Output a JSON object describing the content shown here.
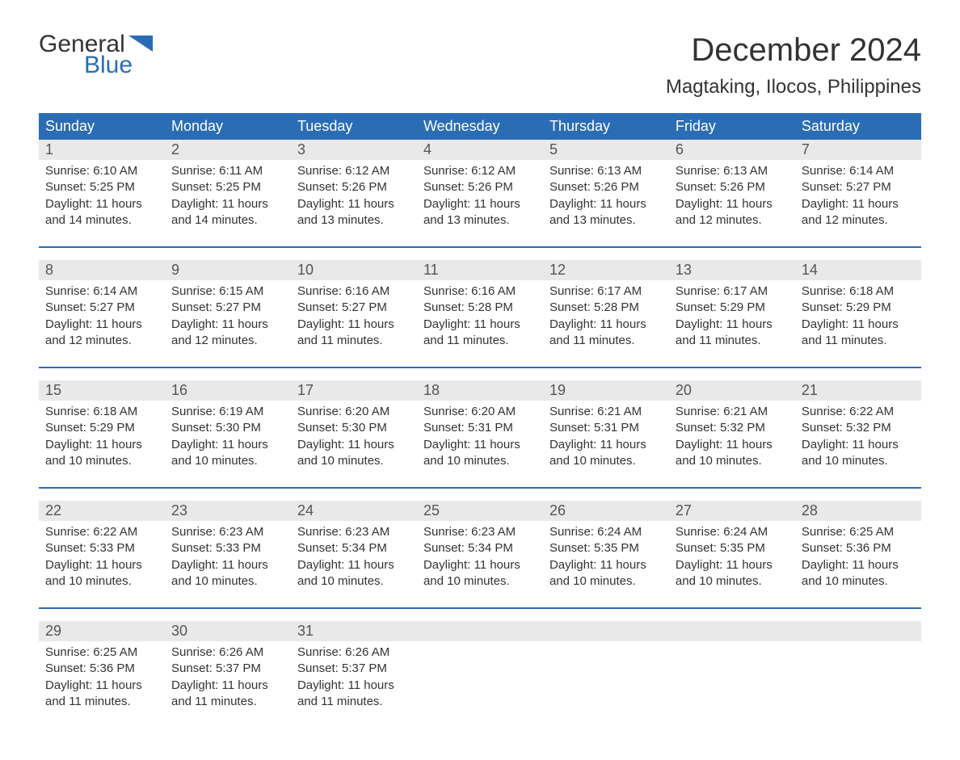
{
  "logo": {
    "word1": "General",
    "word2": "Blue"
  },
  "title": "December 2024",
  "location": "Magtaking, Ilocos, Philippines",
  "colors": {
    "header_bg": "#2a6db5",
    "header_text": "#ffffff",
    "daynum_bg": "#e9e9e9",
    "text": "#333333",
    "logo_accent": "#2a6db5"
  },
  "days_of_week": [
    "Sunday",
    "Monday",
    "Tuesday",
    "Wednesday",
    "Thursday",
    "Friday",
    "Saturday"
  ],
  "weeks": [
    [
      {
        "n": "1",
        "sunrise": "Sunrise: 6:10 AM",
        "sunset": "Sunset: 5:25 PM",
        "day1": "Daylight: 11 hours",
        "day2": "and 14 minutes."
      },
      {
        "n": "2",
        "sunrise": "Sunrise: 6:11 AM",
        "sunset": "Sunset: 5:25 PM",
        "day1": "Daylight: 11 hours",
        "day2": "and 14 minutes."
      },
      {
        "n": "3",
        "sunrise": "Sunrise: 6:12 AM",
        "sunset": "Sunset: 5:26 PM",
        "day1": "Daylight: 11 hours",
        "day2": "and 13 minutes."
      },
      {
        "n": "4",
        "sunrise": "Sunrise: 6:12 AM",
        "sunset": "Sunset: 5:26 PM",
        "day1": "Daylight: 11 hours",
        "day2": "and 13 minutes."
      },
      {
        "n": "5",
        "sunrise": "Sunrise: 6:13 AM",
        "sunset": "Sunset: 5:26 PM",
        "day1": "Daylight: 11 hours",
        "day2": "and 13 minutes."
      },
      {
        "n": "6",
        "sunrise": "Sunrise: 6:13 AM",
        "sunset": "Sunset: 5:26 PM",
        "day1": "Daylight: 11 hours",
        "day2": "and 12 minutes."
      },
      {
        "n": "7",
        "sunrise": "Sunrise: 6:14 AM",
        "sunset": "Sunset: 5:27 PM",
        "day1": "Daylight: 11 hours",
        "day2": "and 12 minutes."
      }
    ],
    [
      {
        "n": "8",
        "sunrise": "Sunrise: 6:14 AM",
        "sunset": "Sunset: 5:27 PM",
        "day1": "Daylight: 11 hours",
        "day2": "and 12 minutes."
      },
      {
        "n": "9",
        "sunrise": "Sunrise: 6:15 AM",
        "sunset": "Sunset: 5:27 PM",
        "day1": "Daylight: 11 hours",
        "day2": "and 12 minutes."
      },
      {
        "n": "10",
        "sunrise": "Sunrise: 6:16 AM",
        "sunset": "Sunset: 5:27 PM",
        "day1": "Daylight: 11 hours",
        "day2": "and 11 minutes."
      },
      {
        "n": "11",
        "sunrise": "Sunrise: 6:16 AM",
        "sunset": "Sunset: 5:28 PM",
        "day1": "Daylight: 11 hours",
        "day2": "and 11 minutes."
      },
      {
        "n": "12",
        "sunrise": "Sunrise: 6:17 AM",
        "sunset": "Sunset: 5:28 PM",
        "day1": "Daylight: 11 hours",
        "day2": "and 11 minutes."
      },
      {
        "n": "13",
        "sunrise": "Sunrise: 6:17 AM",
        "sunset": "Sunset: 5:29 PM",
        "day1": "Daylight: 11 hours",
        "day2": "and 11 minutes."
      },
      {
        "n": "14",
        "sunrise": "Sunrise: 6:18 AM",
        "sunset": "Sunset: 5:29 PM",
        "day1": "Daylight: 11 hours",
        "day2": "and 11 minutes."
      }
    ],
    [
      {
        "n": "15",
        "sunrise": "Sunrise: 6:18 AM",
        "sunset": "Sunset: 5:29 PM",
        "day1": "Daylight: 11 hours",
        "day2": "and 10 minutes."
      },
      {
        "n": "16",
        "sunrise": "Sunrise: 6:19 AM",
        "sunset": "Sunset: 5:30 PM",
        "day1": "Daylight: 11 hours",
        "day2": "and 10 minutes."
      },
      {
        "n": "17",
        "sunrise": "Sunrise: 6:20 AM",
        "sunset": "Sunset: 5:30 PM",
        "day1": "Daylight: 11 hours",
        "day2": "and 10 minutes."
      },
      {
        "n": "18",
        "sunrise": "Sunrise: 6:20 AM",
        "sunset": "Sunset: 5:31 PM",
        "day1": "Daylight: 11 hours",
        "day2": "and 10 minutes."
      },
      {
        "n": "19",
        "sunrise": "Sunrise: 6:21 AM",
        "sunset": "Sunset: 5:31 PM",
        "day1": "Daylight: 11 hours",
        "day2": "and 10 minutes."
      },
      {
        "n": "20",
        "sunrise": "Sunrise: 6:21 AM",
        "sunset": "Sunset: 5:32 PM",
        "day1": "Daylight: 11 hours",
        "day2": "and 10 minutes."
      },
      {
        "n": "21",
        "sunrise": "Sunrise: 6:22 AM",
        "sunset": "Sunset: 5:32 PM",
        "day1": "Daylight: 11 hours",
        "day2": "and 10 minutes."
      }
    ],
    [
      {
        "n": "22",
        "sunrise": "Sunrise: 6:22 AM",
        "sunset": "Sunset: 5:33 PM",
        "day1": "Daylight: 11 hours",
        "day2": "and 10 minutes."
      },
      {
        "n": "23",
        "sunrise": "Sunrise: 6:23 AM",
        "sunset": "Sunset: 5:33 PM",
        "day1": "Daylight: 11 hours",
        "day2": "and 10 minutes."
      },
      {
        "n": "24",
        "sunrise": "Sunrise: 6:23 AM",
        "sunset": "Sunset: 5:34 PM",
        "day1": "Daylight: 11 hours",
        "day2": "and 10 minutes."
      },
      {
        "n": "25",
        "sunrise": "Sunrise: 6:23 AM",
        "sunset": "Sunset: 5:34 PM",
        "day1": "Daylight: 11 hours",
        "day2": "and 10 minutes."
      },
      {
        "n": "26",
        "sunrise": "Sunrise: 6:24 AM",
        "sunset": "Sunset: 5:35 PM",
        "day1": "Daylight: 11 hours",
        "day2": "and 10 minutes."
      },
      {
        "n": "27",
        "sunrise": "Sunrise: 6:24 AM",
        "sunset": "Sunset: 5:35 PM",
        "day1": "Daylight: 11 hours",
        "day2": "and 10 minutes."
      },
      {
        "n": "28",
        "sunrise": "Sunrise: 6:25 AM",
        "sunset": "Sunset: 5:36 PM",
        "day1": "Daylight: 11 hours",
        "day2": "and 10 minutes."
      }
    ],
    [
      {
        "n": "29",
        "sunrise": "Sunrise: 6:25 AM",
        "sunset": "Sunset: 5:36 PM",
        "day1": "Daylight: 11 hours",
        "day2": "and 11 minutes."
      },
      {
        "n": "30",
        "sunrise": "Sunrise: 6:26 AM",
        "sunset": "Sunset: 5:37 PM",
        "day1": "Daylight: 11 hours",
        "day2": "and 11 minutes."
      },
      {
        "n": "31",
        "sunrise": "Sunrise: 6:26 AM",
        "sunset": "Sunset: 5:37 PM",
        "day1": "Daylight: 11 hours",
        "day2": "and 11 minutes."
      },
      null,
      null,
      null,
      null
    ]
  ]
}
